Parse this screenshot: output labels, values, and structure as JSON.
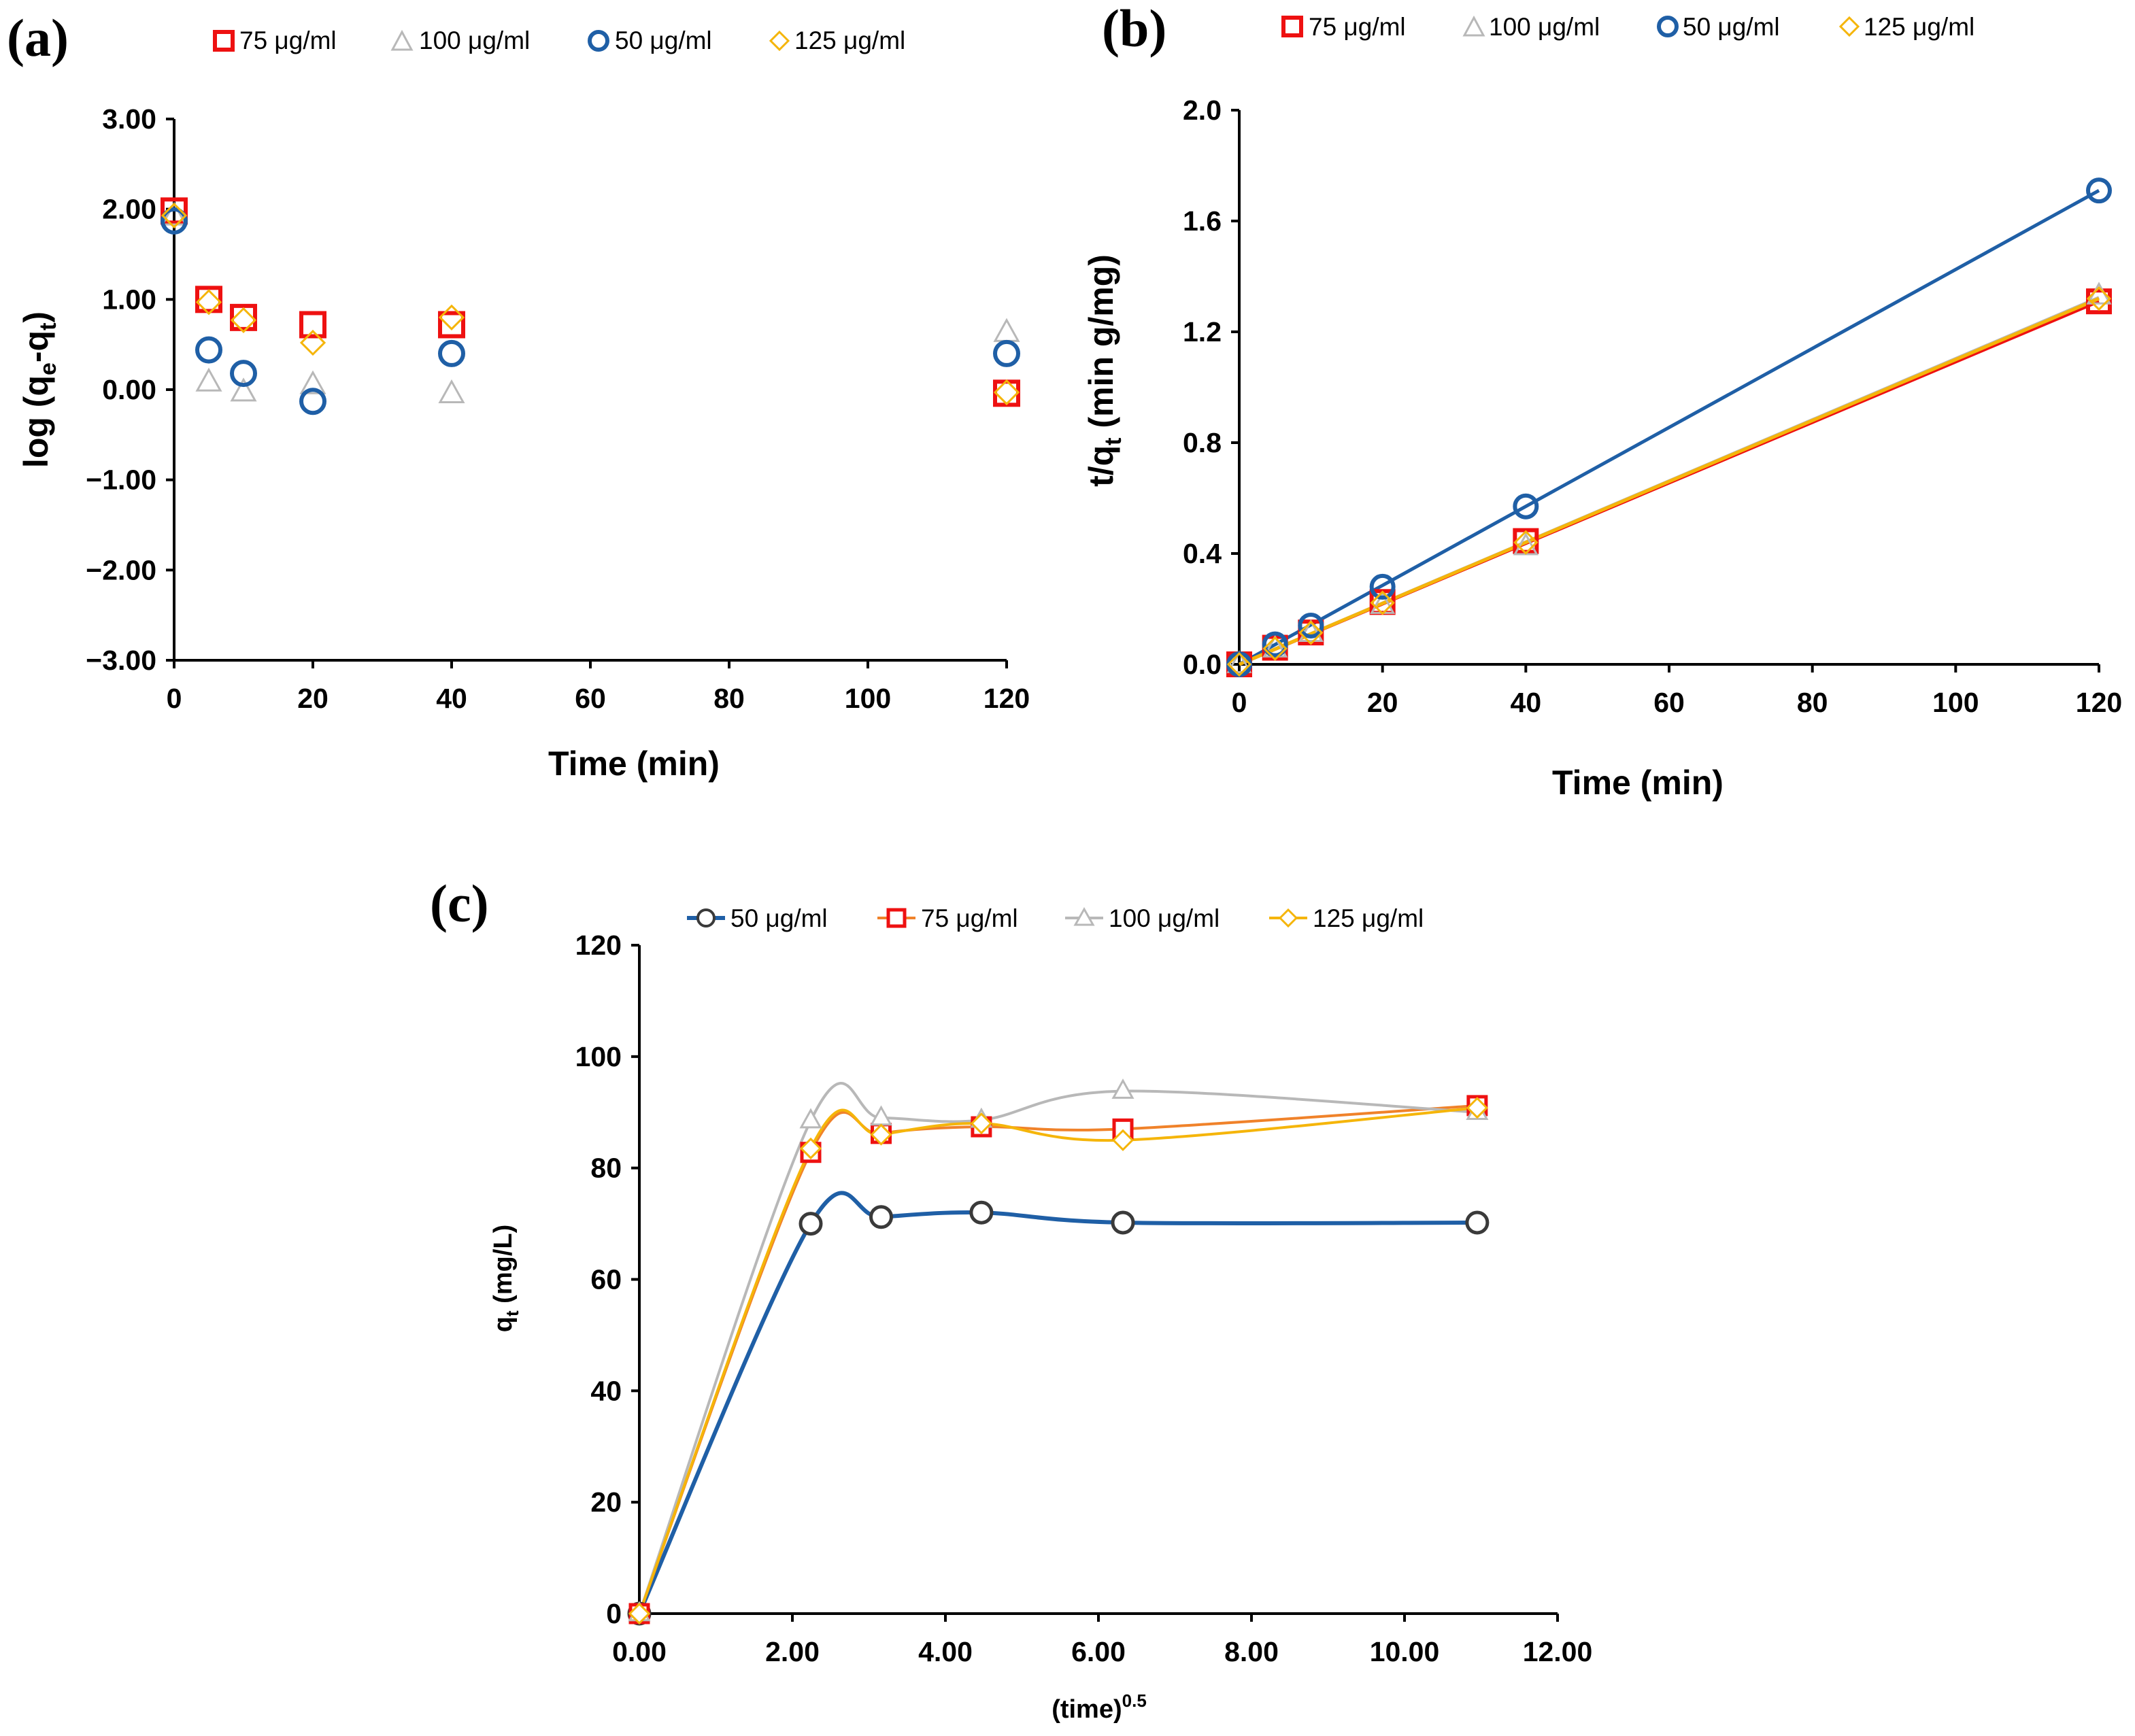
{
  "colors": {
    "c50": "#1f5fa6",
    "c75": "#ee1111",
    "c100": "#b8b8b8",
    "c125": "#f5b50a",
    "line75": "#f0822a"
  },
  "chart_data": [
    {
      "id": "a",
      "panel_label": "(a)",
      "type": "scatter",
      "xlabel": "Time (min)",
      "ylabel_main": "log (q",
      "ylabel_sub1": "e",
      "ylabel_mid": "-q",
      "ylabel_sub2": "t",
      "ylabel_end": ")",
      "xlim": [
        0,
        120
      ],
      "ylim": [
        -3,
        3
      ],
      "xticks": [
        "0",
        "20",
        "40",
        "60",
        "80",
        "100",
        "120"
      ],
      "yticks": [
        "3.00",
        "2.00",
        "1.00",
        "0.00",
        "−1.00",
        "−2.00",
        "−3.00"
      ],
      "legend": [
        "75  μg/ml",
        "100  μg/ml",
        "50  μg/ml",
        "125  μg/ml"
      ],
      "series": [
        {
          "name": "75 μg/ml",
          "marker": "square",
          "color": "c75",
          "x": [
            0,
            5,
            10,
            20,
            40,
            120
          ],
          "y": [
            1.98,
            1.0,
            0.8,
            0.72,
            0.72,
            -0.04
          ]
        },
        {
          "name": "100 μg/ml",
          "marker": "triangle",
          "color": "c100",
          "x": [
            0,
            5,
            10,
            20,
            40,
            120
          ],
          "y": [
            1.92,
            0.08,
            -0.03,
            0.05,
            -0.05,
            0.63
          ]
        },
        {
          "name": "50 μg/ml",
          "marker": "circle",
          "color": "c50",
          "x": [
            0,
            5,
            10,
            20,
            40,
            120
          ],
          "y": [
            1.87,
            0.44,
            0.18,
            -0.13,
            0.4,
            0.4
          ]
        },
        {
          "name": "125 μg/ml",
          "marker": "diamond",
          "color": "c125",
          "x": [
            0,
            5,
            10,
            20,
            40,
            120
          ],
          "y": [
            1.93,
            0.97,
            0.77,
            0.52,
            0.8,
            -0.03
          ]
        }
      ]
    },
    {
      "id": "b",
      "panel_label": "(b)",
      "type": "scatter",
      "xlabel": "Time (min)",
      "ylabel_main": "t/q",
      "ylabel_sub": "t",
      "ylabel_end": " (min g/mg)",
      "xlim": [
        0,
        120
      ],
      "ylim": [
        0,
        2
      ],
      "xticks": [
        "0",
        "20",
        "40",
        "60",
        "80",
        "100",
        "120"
      ],
      "yticks": [
        "2.0",
        "1.6",
        "1.2",
        "0.8",
        "0.4",
        "0.0"
      ],
      "legend": [
        "75  μg/ml",
        "100  μg/ml",
        "50  μg/ml",
        "125  μg/ml"
      ],
      "series": [
        {
          "name": "75 μg/ml",
          "marker": "square",
          "color": "c75",
          "x": [
            0,
            5,
            10,
            20,
            40,
            120
          ],
          "y": [
            0,
            0.06,
            0.115,
            0.225,
            0.445,
            1.31
          ],
          "fit": [
            0.0,
            0.01092
          ]
        },
        {
          "name": "100 μg/ml",
          "marker": "triangle",
          "color": "c100",
          "x": [
            0,
            5,
            10,
            20,
            40,
            120
          ],
          "y": [
            0,
            0.056,
            0.112,
            0.213,
            0.425,
            1.33
          ],
          "fit": [
            0.0,
            0.01103
          ]
        },
        {
          "name": "50 μg/ml",
          "marker": "circle",
          "color": "c50",
          "x": [
            0,
            5,
            10,
            20,
            40,
            120
          ],
          "y": [
            0,
            0.072,
            0.14,
            0.28,
            0.57,
            1.71
          ],
          "fit": [
            0.0,
            0.01425
          ]
        },
        {
          "name": "125 μg/ml",
          "marker": "diamond",
          "color": "c125",
          "x": [
            0,
            5,
            10,
            20,
            40,
            120
          ],
          "y": [
            0,
            0.057,
            0.114,
            0.222,
            0.44,
            1.32
          ],
          "fit": [
            0.0,
            0.011
          ]
        }
      ]
    },
    {
      "id": "c",
      "panel_label": "(c)",
      "type": "line",
      "xlabel_main": "(time)",
      "xlabel_sup": "0.5",
      "ylabel_main": "q",
      "ylabel_sub": "t",
      "ylabel_end": " (mg/L)",
      "xlim": [
        0,
        12
      ],
      "ylim": [
        0,
        120
      ],
      "xticks": [
        "0.00",
        "2.00",
        "4.00",
        "6.00",
        "8.00",
        "10.00",
        "12.00"
      ],
      "yticks": [
        "120",
        "100",
        "80",
        "60",
        "40",
        "20",
        "0"
      ],
      "legend": [
        "50  μg/ml",
        "75  μg/ml",
        "100  μg/ml",
        "125  μg/ml"
      ],
      "x": [
        0,
        2.24,
        3.16,
        4.47,
        6.32,
        10.95
      ],
      "series": [
        {
          "name": "50 μg/ml",
          "marker": "circle",
          "color": "c50",
          "y": [
            0,
            70,
            71.2,
            72,
            70.2,
            70.2
          ]
        },
        {
          "name": "75 μg/ml",
          "marker": "square",
          "color": "c75",
          "y": [
            0,
            82.8,
            86.2,
            87.4,
            87,
            91.2
          ]
        },
        {
          "name": "100 μg/ml",
          "marker": "triangle",
          "color": "c100",
          "y": [
            0,
            88.5,
            89,
            88.6,
            93.8,
            90
          ]
        },
        {
          "name": "125 μg/ml",
          "marker": "diamond",
          "color": "c125",
          "y": [
            0,
            83.5,
            86,
            88,
            85,
            90.8
          ]
        }
      ]
    }
  ]
}
